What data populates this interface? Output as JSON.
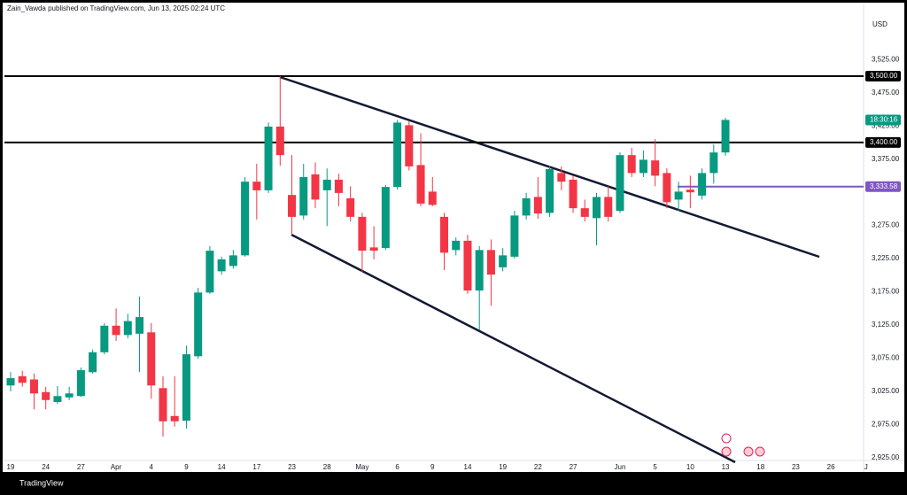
{
  "chart_data": {
    "type": "candlestick",
    "header": "Zain_Vawda published on TradingView.com, Jun 13, 2025 02:24 UTC",
    "currency": "USD",
    "brand": "TradingView",
    "up_color": "#089981",
    "down_color": "#f23645",
    "categories": [
      "19",
      null,
      null,
      "24",
      null,
      null,
      "27",
      null,
      null,
      "Apr",
      null,
      null,
      "4",
      null,
      null,
      "9",
      null,
      null,
      "14",
      null,
      null,
      "17",
      null,
      null,
      "23",
      null,
      null,
      "28",
      null,
      null,
      "May",
      null,
      null,
      "6",
      null,
      null,
      "9",
      null,
      null,
      "14",
      null,
      null,
      "19",
      null,
      null,
      "22",
      null,
      null,
      "27",
      null,
      null,
      null,
      "Jun",
      null,
      null,
      "5",
      null,
      null,
      "10",
      null,
      null,
      "13",
      null,
      null,
      "18",
      null,
      null,
      "23",
      null,
      null,
      "26",
      null,
      null,
      "J"
    ],
    "open": [
      3034,
      3048,
      3043,
      3024,
      3009,
      3016,
      3018,
      3054,
      3084,
      3124,
      3110,
      3112,
      3114,
      3030,
      2988,
      2981,
      3078,
      3174,
      3206,
      3214,
      3230,
      3341,
      3328,
      3424,
      3321,
      3290,
      3352,
      3328,
      3344,
      3316,
      3288,
      3242,
      3241,
      3333,
      3426,
      3366,
      3326,
      3288,
      3238,
      3252,
      3177,
      3238,
      3212,
      3228,
      3290,
      3318,
      3294,
      3354,
      3344,
      3301,
      3286,
      3318,
      3297,
      3381,
      3354,
      3373,
      3354,
      3314,
      3329,
      3320,
      3354,
      3385,
      null,
      null,
      null,
      null,
      null,
      null,
      null,
      null,
      null,
      null,
      null,
      null
    ],
    "high": [
      3054,
      3056,
      3052,
      3032,
      3033,
      3032,
      3061,
      3088,
      3128,
      3150,
      3142,
      3168,
      3128,
      3048,
      3048,
      3094,
      3181,
      3244,
      3228,
      3238,
      3348,
      3368,
      3430,
      3500,
      3381,
      3368,
      3370,
      3361,
      3353,
      3334,
      3294,
      3274,
      3336,
      3434,
      3433,
      3414,
      3348,
      3294,
      3257,
      3261,
      3244,
      3254,
      3241,
      3297,
      3324,
      3348,
      3365,
      3364,
      3350,
      3314,
      3324,
      3334,
      3385,
      3392,
      3388,
      3405,
      3361,
      3341,
      3350,
      3361,
      3397,
      3437,
      null,
      null,
      null,
      null,
      null,
      null,
      null,
      null,
      null,
      null,
      null,
      null
    ],
    "low": [
      3025,
      3032,
      2998,
      2998,
      3006,
      3012,
      3017,
      3052,
      3081,
      3101,
      3105,
      3054,
      3014,
      2957,
      2972,
      2969,
      3074,
      3172,
      3201,
      3210,
      3228,
      3284,
      3324,
      3365,
      3261,
      3284,
      3301,
      3274,
      3304,
      3281,
      3205,
      3224,
      3238,
      3329,
      3358,
      3304,
      3304,
      3208,
      3230,
      3172,
      3118,
      3154,
      3206,
      3225,
      3284,
      3285,
      3288,
      3328,
      3294,
      3281,
      3245,
      3281,
      3294,
      3348,
      3348,
      3334,
      3301,
      3297,
      3301,
      3314,
      3338,
      3380,
      null,
      null,
      null,
      null,
      null,
      null,
      null,
      null,
      null,
      null,
      null,
      null
    ],
    "close": [
      3045,
      3038,
      3022,
      3012,
      3018,
      3022,
      3057,
      3084,
      3124,
      3110,
      3131,
      3137,
      3034,
      2980,
      2980,
      3081,
      3174,
      3237,
      3224,
      3230,
      3341,
      3328,
      3424,
      3381,
      3288,
      3348,
      3314,
      3344,
      3324,
      3288,
      3237,
      3237,
      3333,
      3430,
      3364,
      3308,
      3306,
      3234,
      3252,
      3177,
      3238,
      3201,
      3230,
      3290,
      3316,
      3293,
      3360,
      3341,
      3301,
      3288,
      3318,
      3288,
      3381,
      3354,
      3374,
      3350,
      3310,
      3326,
      3325,
      3354,
      3385,
      3434,
      null,
      null,
      null,
      null,
      null,
      null,
      null,
      null,
      null,
      null,
      null,
      null
    ],
    "ylim": [
      2921,
      3588
    ],
    "yticks": [
      {
        "value": 2925,
        "label": "2,925.00"
      },
      {
        "value": 2975,
        "label": "2,975.00"
      },
      {
        "value": 3025,
        "label": "3,025.00"
      },
      {
        "value": 3075,
        "label": "3,075.00"
      },
      {
        "value": 3125,
        "label": "3,125.00"
      },
      {
        "value": 3175,
        "label": "3,175.00"
      },
      {
        "value": 3225,
        "label": "3,225.00"
      },
      {
        "value": 3275,
        "label": "3,275.00"
      },
      {
        "value": 3375,
        "label": "3,375.00"
      },
      {
        "value": 3425,
        "label": "3,425.00"
      },
      {
        "value": 3475,
        "label": "3,475.00"
      },
      {
        "value": 3525,
        "label": "3,525.00"
      }
    ],
    "levels": [
      {
        "value": 3500,
        "label": "3,500.00",
        "color": "#000000"
      },
      {
        "value": 3400,
        "label": "3,400.00",
        "color": "#000000"
      }
    ],
    "marker": {
      "value": 3333.58,
      "label": "3,333.58",
      "color": "#7e57c2"
    },
    "countdown": "18:30:16"
  }
}
